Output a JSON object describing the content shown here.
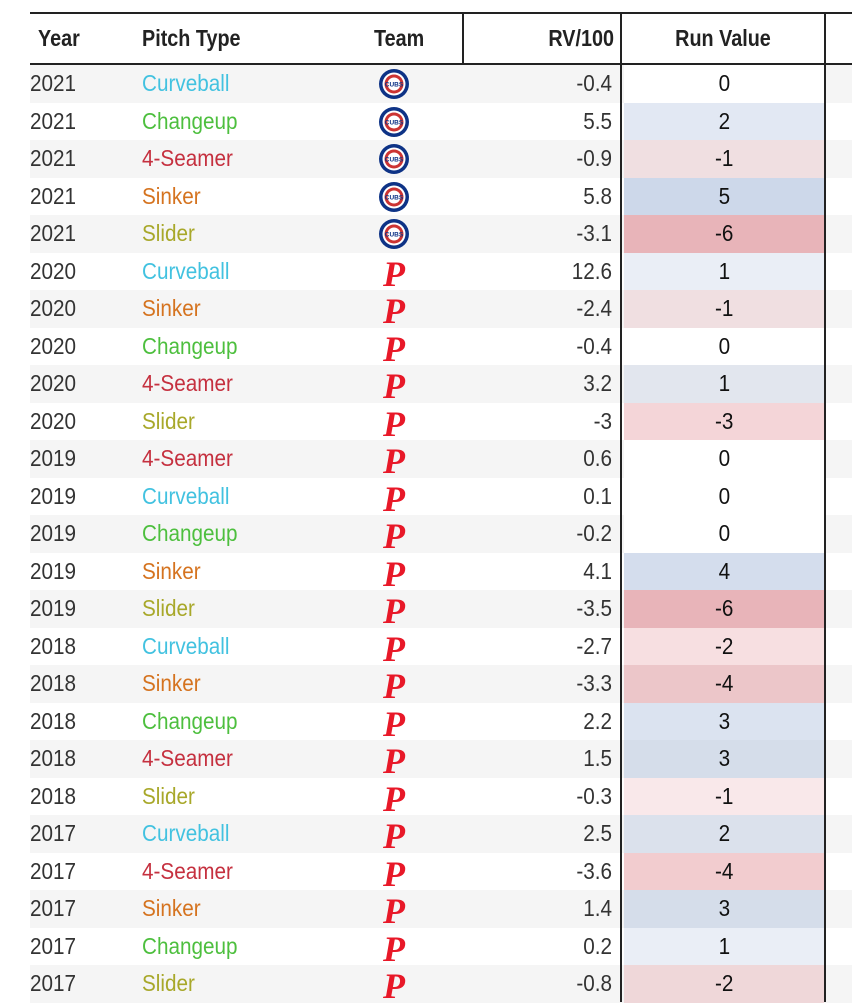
{
  "columns": {
    "year": "Year",
    "pitch_type": "Pitch Type",
    "team": "Team",
    "rv100": "RV/100",
    "run_value": "Run Value"
  },
  "colors": {
    "Curveball": "#42c2e0",
    "Changeup": "#4dbf3e",
    "4-Seamer": "#c5303f",
    "Sinker": "#d5731f",
    "Slider": "#a8a82a",
    "positive_base": "#c8d2e8",
    "negative_base": "#e9b3b8"
  },
  "team_logos": {
    "CHC": {
      "icon": "cubs-logo-icon",
      "text": "CUBS"
    },
    "PHI": {
      "icon": "phillies-logo-icon",
      "text": "P"
    }
  },
  "rows": [
    {
      "year": "2021",
      "pitch": "Curveball",
      "team": "CHC",
      "rv100": "-0.4",
      "run_value": "0"
    },
    {
      "year": "2021",
      "pitch": "Changeup",
      "team": "CHC",
      "rv100": "5.5",
      "run_value": "2"
    },
    {
      "year": "2021",
      "pitch": "4-Seamer",
      "team": "CHC",
      "rv100": "-0.9",
      "run_value": "-1"
    },
    {
      "year": "2021",
      "pitch": "Sinker",
      "team": "CHC",
      "rv100": "5.8",
      "run_value": "5"
    },
    {
      "year": "2021",
      "pitch": "Slider",
      "team": "CHC",
      "rv100": "-3.1",
      "run_value": "-6"
    },
    {
      "year": "2020",
      "pitch": "Curveball",
      "team": "PHI",
      "rv100": "12.6",
      "run_value": "1"
    },
    {
      "year": "2020",
      "pitch": "Sinker",
      "team": "PHI",
      "rv100": "-2.4",
      "run_value": "-1"
    },
    {
      "year": "2020",
      "pitch": "Changeup",
      "team": "PHI",
      "rv100": "-0.4",
      "run_value": "0"
    },
    {
      "year": "2020",
      "pitch": "4-Seamer",
      "team": "PHI",
      "rv100": "3.2",
      "run_value": "1"
    },
    {
      "year": "2020",
      "pitch": "Slider",
      "team": "PHI",
      "rv100": "-3",
      "run_value": "-3"
    },
    {
      "year": "2019",
      "pitch": "4-Seamer",
      "team": "PHI",
      "rv100": "0.6",
      "run_value": "0"
    },
    {
      "year": "2019",
      "pitch": "Curveball",
      "team": "PHI",
      "rv100": "0.1",
      "run_value": "0"
    },
    {
      "year": "2019",
      "pitch": "Changeup",
      "team": "PHI",
      "rv100": "-0.2",
      "run_value": "0"
    },
    {
      "year": "2019",
      "pitch": "Sinker",
      "team": "PHI",
      "rv100": "4.1",
      "run_value": "4"
    },
    {
      "year": "2019",
      "pitch": "Slider",
      "team": "PHI",
      "rv100": "-3.5",
      "run_value": "-6"
    },
    {
      "year": "2018",
      "pitch": "Curveball",
      "team": "PHI",
      "rv100": "-2.7",
      "run_value": "-2"
    },
    {
      "year": "2018",
      "pitch": "Sinker",
      "team": "PHI",
      "rv100": "-3.3",
      "run_value": "-4"
    },
    {
      "year": "2018",
      "pitch": "Changeup",
      "team": "PHI",
      "rv100": "2.2",
      "run_value": "3"
    },
    {
      "year": "2018",
      "pitch": "4-Seamer",
      "team": "PHI",
      "rv100": "1.5",
      "run_value": "3"
    },
    {
      "year": "2018",
      "pitch": "Slider",
      "team": "PHI",
      "rv100": "-0.3",
      "run_value": "-1"
    },
    {
      "year": "2017",
      "pitch": "Curveball",
      "team": "PHI",
      "rv100": "2.5",
      "run_value": "2"
    },
    {
      "year": "2017",
      "pitch": "4-Seamer",
      "team": "PHI",
      "rv100": "-3.6",
      "run_value": "-4"
    },
    {
      "year": "2017",
      "pitch": "Sinker",
      "team": "PHI",
      "rv100": "1.4",
      "run_value": "3"
    },
    {
      "year": "2017",
      "pitch": "Changeup",
      "team": "PHI",
      "rv100": "0.2",
      "run_value": "1"
    },
    {
      "year": "2017",
      "pitch": "Slider",
      "team": "PHI",
      "rv100": "-0.8",
      "run_value": "-2"
    }
  ]
}
